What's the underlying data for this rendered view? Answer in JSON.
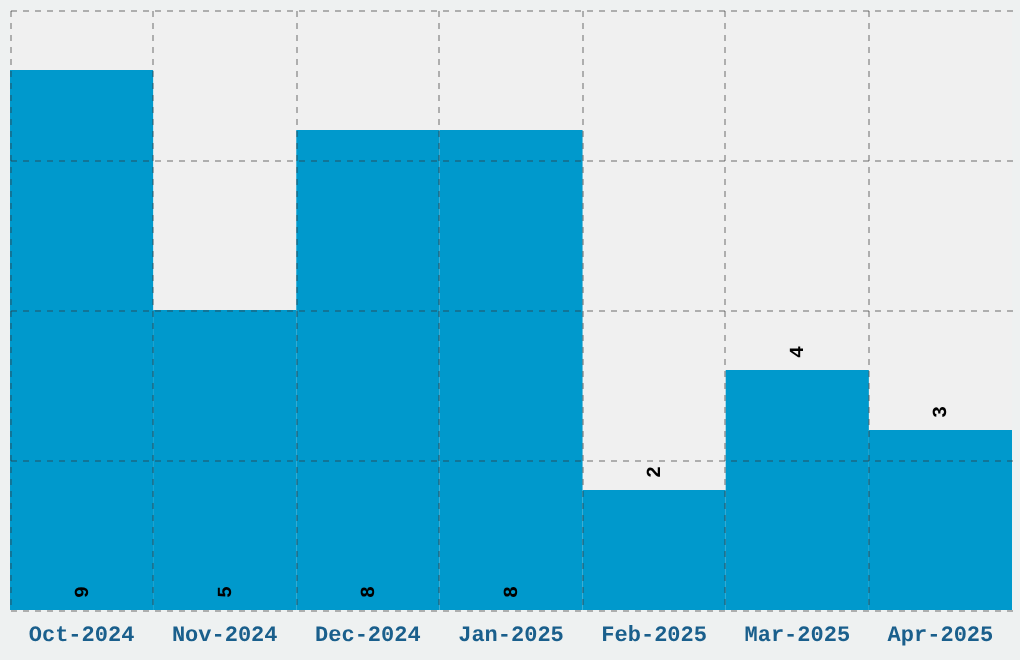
{
  "chart_data": {
    "type": "bar",
    "categories": [
      "Oct-2024",
      "Nov-2024",
      "Dec-2024",
      "Jan-2025",
      "Feb-2025",
      "Mar-2025",
      "Apr-2025"
    ],
    "values": [
      9,
      5,
      8,
      8,
      2,
      4,
      3
    ],
    "color": "#0099cc",
    "ylim": [
      0,
      10
    ],
    "yticks": [
      {
        "value": 0,
        "label": null
      },
      {
        "value": 2.5,
        "label": null
      },
      {
        "value": 5,
        "label": null
      },
      {
        "value": 7.5,
        "label": null
      },
      {
        "value": 10,
        "label": null
      }
    ],
    "grid": true,
    "tick_labels": "x",
    "data_labels": true
  }
}
